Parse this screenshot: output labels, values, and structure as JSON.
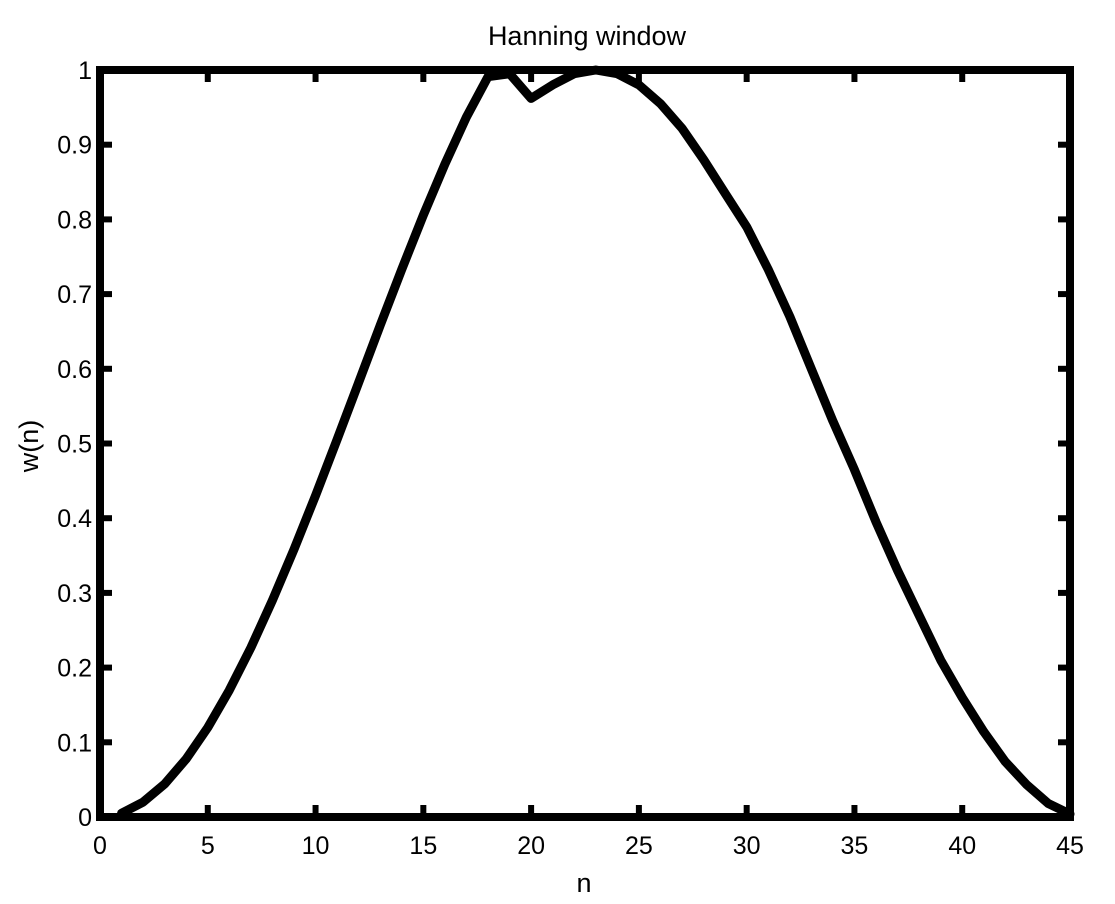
{
  "chart_data": {
    "type": "line",
    "title": "Hanning window",
    "xlabel": "n",
    "ylabel": "w(n)",
    "xlim": [
      0,
      45
    ],
    "ylim": [
      0,
      1
    ],
    "xticks": [
      0,
      5,
      10,
      15,
      20,
      25,
      30,
      35,
      40,
      45
    ],
    "xtick_labels": [
      "0",
      "5",
      "10",
      "15",
      "20",
      "25",
      "30",
      "35",
      "40",
      "45"
    ],
    "yticks": [
      0,
      0.1,
      0.2,
      0.3,
      0.4,
      0.5,
      0.6,
      0.7,
      0.8,
      0.9,
      1
    ],
    "ytick_labels": [
      "0",
      "0.1",
      "0.2",
      "0.3",
      "0.4",
      "0.5",
      "0.6",
      "0.7",
      "0.8",
      "0.9",
      "1"
    ],
    "grid": false,
    "line_color": "#000000",
    "series": [
      {
        "x": [
          1,
          2,
          3,
          4,
          5,
          6,
          7,
          8,
          9,
          10,
          11,
          12,
          13,
          14,
          15,
          16,
          17,
          18,
          19,
          20,
          21,
          22,
          23,
          24,
          25,
          26,
          27,
          28,
          29,
          30,
          31,
          32,
          33,
          34,
          35,
          36,
          37,
          38,
          39,
          40,
          41,
          42,
          43,
          44,
          45
        ],
        "values": [
          0.005,
          0.0199,
          0.0443,
          0.0778,
          0.1198,
          0.1698,
          0.2268,
          0.2899,
          0.3582,
          0.4305,
          0.5054,
          0.5818,
          0.6582,
          0.7333,
          0.8056,
          0.874,
          0.937,
          0.991,
          0.995,
          0.962,
          0.98,
          0.995,
          1.0,
          0.995,
          0.98,
          0.955,
          0.922,
          0.88,
          0.835,
          0.79,
          0.733,
          0.67,
          0.6,
          0.53,
          0.465,
          0.395,
          0.33,
          0.27,
          0.21,
          0.16,
          0.114,
          0.074,
          0.043,
          0.018,
          0.004
        ]
      }
    ]
  }
}
